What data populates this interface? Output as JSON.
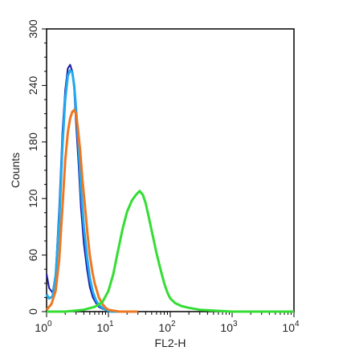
{
  "chart_data": {
    "type": "line",
    "title": "",
    "xlabel": "FL2-H",
    "ylabel": "Counts",
    "x_scale": "log",
    "xlim": [
      1,
      10000
    ],
    "ylim": [
      0,
      300
    ],
    "x_ticks": [
      {
        "base": "10",
        "exp": "0"
      },
      {
        "base": "10",
        "exp": "1"
      },
      {
        "base": "10",
        "exp": "2"
      },
      {
        "base": "10",
        "exp": "3"
      },
      {
        "base": "10",
        "exp": "4"
      }
    ],
    "y_ticks": [
      "0",
      "60",
      "120",
      "180",
      "240",
      "300"
    ],
    "grid": false,
    "legend": "none",
    "series": [
      {
        "color": "#1a1aa6",
        "x": [
          1.0,
          1.1,
          1.25,
          1.4,
          1.6,
          1.8,
          2.0,
          2.2,
          2.4,
          2.6,
          2.8,
          3.0,
          3.3,
          3.6,
          4.0,
          4.5,
          5.0,
          5.6,
          6.3,
          7.0,
          8.0,
          9.0,
          10.0,
          11.0,
          12.5,
          15.0
        ],
        "values": [
          40,
          25,
          20,
          40,
          110,
          190,
          235,
          258,
          262,
          255,
          235,
          200,
          155,
          110,
          72,
          45,
          26,
          15,
          9,
          5,
          3,
          2,
          1,
          0,
          0,
          0
        ]
      },
      {
        "color": "#22aaee",
        "x": [
          1.0,
          1.1,
          1.25,
          1.4,
          1.6,
          1.8,
          2.0,
          2.2,
          2.4,
          2.6,
          2.8,
          3.0,
          3.3,
          3.6,
          4.0,
          4.5,
          5.0,
          5.6,
          6.3,
          7.0,
          8.0,
          9.0,
          10.0,
          11.0,
          12.5,
          15.0
        ],
        "values": [
          18,
          14,
          16,
          38,
          95,
          175,
          225,
          250,
          256,
          254,
          240,
          215,
          175,
          130,
          90,
          58,
          36,
          21,
          12,
          7,
          4,
          2,
          1,
          0,
          0,
          0
        ]
      },
      {
        "color": "#ee7722",
        "x": [
          1.0,
          1.2,
          1.4,
          1.6,
          1.8,
          2.0,
          2.2,
          2.4,
          2.6,
          2.8,
          3.0,
          3.2,
          3.5,
          3.8,
          4.2,
          4.6,
          5.0,
          5.5,
          6.0,
          7.0,
          8.0,
          9.0,
          10.0,
          12.0,
          15.0,
          20.0,
          30.0
        ],
        "values": [
          2,
          8,
          22,
          55,
          110,
          160,
          190,
          205,
          212,
          214,
          210,
          195,
          170,
          140,
          110,
          82,
          60,
          42,
          30,
          15,
          8,
          4,
          2,
          1,
          0,
          0,
          0
        ]
      },
      {
        "color": "#33dd33",
        "x": [
          1.0,
          2.0,
          4.0,
          6.0,
          8.0,
          10.0,
          12.0,
          14.0,
          17.0,
          20.0,
          24.0,
          28.0,
          32.0,
          36.0,
          40.0,
          45.0,
          50.0,
          60.0,
          70.0,
          80.0,
          90.0,
          100.0,
          120.0,
          150.0,
          200.0,
          300.0,
          500.0,
          1000.0,
          10000.0
        ],
        "values": [
          0,
          0,
          2,
          5,
          10,
          22,
          40,
          62,
          88,
          106,
          118,
          124,
          128,
          124,
          115,
          100,
          86,
          62,
          44,
          30,
          20,
          14,
          9,
          6,
          4,
          2,
          1,
          0,
          0
        ]
      }
    ]
  }
}
